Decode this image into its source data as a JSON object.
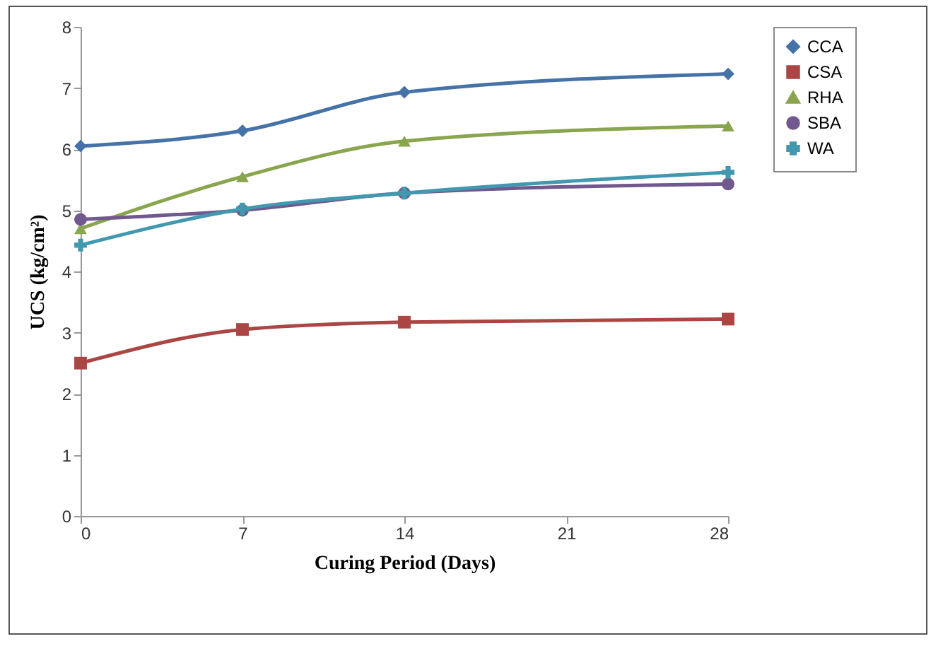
{
  "chart_data": {
    "type": "line",
    "xlabel": "Curing Period (Days)",
    "ylabel": "UCS (kg/cm²)",
    "x": [
      0,
      7,
      14,
      28
    ],
    "xlim": [
      0,
      28
    ],
    "xticks": [
      0,
      7,
      14,
      21,
      28
    ],
    "ylim": [
      0,
      8
    ],
    "yticks": [
      0,
      1,
      2,
      3,
      4,
      5,
      6,
      7,
      8
    ],
    "grid": false,
    "legend": "right",
    "line_style": "solid",
    "series": [
      {
        "name": "CCA",
        "color": "#4572a7",
        "marker": "diamond",
        "values": [
          6.05,
          6.3,
          6.93,
          7.23
        ]
      },
      {
        "name": "CSA",
        "color": "#aa4643",
        "marker": "square",
        "values": [
          2.5,
          3.05,
          3.17,
          3.22
        ]
      },
      {
        "name": "RHA",
        "color": "#89a54e",
        "marker": "triangle",
        "values": [
          4.7,
          5.55,
          6.13,
          6.38
        ]
      },
      {
        "name": "SBA",
        "color": "#71588f",
        "marker": "circle",
        "values": [
          4.85,
          5.0,
          5.28,
          5.43
        ]
      },
      {
        "name": "WA",
        "color": "#4198af",
        "marker": "cross",
        "values": [
          4.43,
          5.02,
          5.28,
          5.62
        ]
      }
    ]
  }
}
